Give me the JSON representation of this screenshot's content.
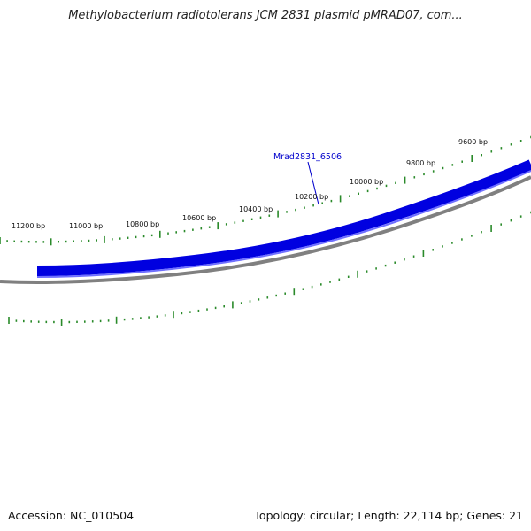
{
  "title": "Methylobacterium radiotolerans JCM 2831 plasmid pMRAD07, com...",
  "footer": {
    "accession": "Accession: NC_010504",
    "summary": "Topology: circular; Length: 22,114 bp; Genes: 21"
  },
  "colors": {
    "gene_band": "#0000e0",
    "gene_band_light": "#6f6fff",
    "backbone": "#808080",
    "ticks": "#2a8a2a",
    "gene_label": "#0000cc"
  },
  "map": {
    "tick_labels": [
      "11200 bp",
      "11000 bp",
      "10800 bp",
      "10600 bp",
      "10400 bp",
      "10200 bp",
      "10000 bp",
      "9800 bp",
      "9600 bp"
    ],
    "gene_label": "Mrad2831_6506"
  }
}
